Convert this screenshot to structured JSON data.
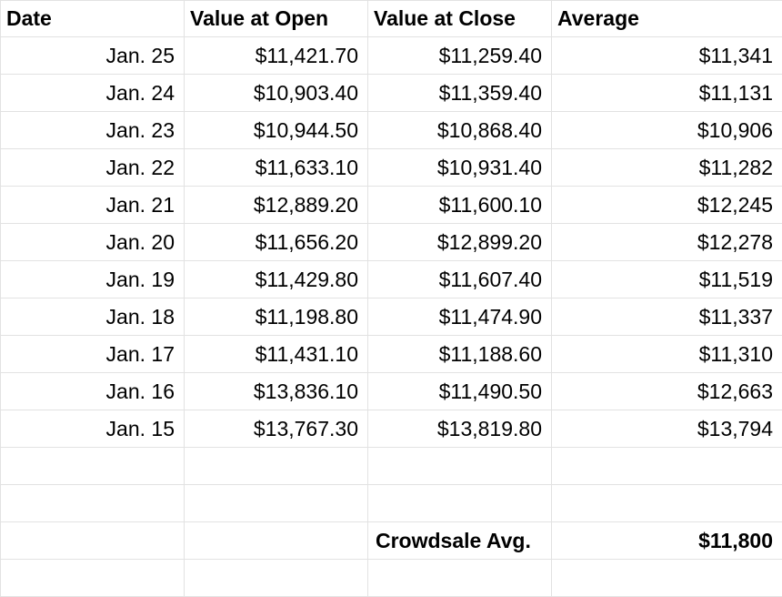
{
  "headers": [
    "Date",
    "Value at Open",
    "Value at Close",
    "Average"
  ],
  "rows": [
    {
      "date": "Jan. 25",
      "open": "$11,421.70",
      "close": "$11,259.40",
      "avg": "$11,341"
    },
    {
      "date": "Jan. 24",
      "open": "$10,903.40",
      "close": "$11,359.40",
      "avg": "$11,131"
    },
    {
      "date": "Jan. 23",
      "open": "$10,944.50",
      "close": "$10,868.40",
      "avg": "$10,906"
    },
    {
      "date": "Jan. 22",
      "open": "$11,633.10",
      "close": "$10,931.40",
      "avg": "$11,282"
    },
    {
      "date": "Jan. 21",
      "open": "$12,889.20",
      "close": "$11,600.10",
      "avg": "$12,245"
    },
    {
      "date": "Jan. 20",
      "open": "$11,656.20",
      "close": "$12,899.20",
      "avg": "$12,278"
    },
    {
      "date": "Jan. 19",
      "open": "$11,429.80",
      "close": "$11,607.40",
      "avg": "$11,519"
    },
    {
      "date": "Jan. 18",
      "open": "$11,198.80",
      "close": "$11,474.90",
      "avg": "$11,337"
    },
    {
      "date": "Jan. 17",
      "open": "$11,431.10",
      "close": "$11,188.60",
      "avg": "$11,310"
    },
    {
      "date": "Jan. 16",
      "open": "$13,836.10",
      "close": "$11,490.50",
      "avg": "$12,663"
    },
    {
      "date": "Jan. 15",
      "open": "$13,767.30",
      "close": "$13,819.80",
      "avg": "$13,794"
    }
  ],
  "summary": {
    "label": "Crowdsale Avg.",
    "value": "$11,800"
  }
}
